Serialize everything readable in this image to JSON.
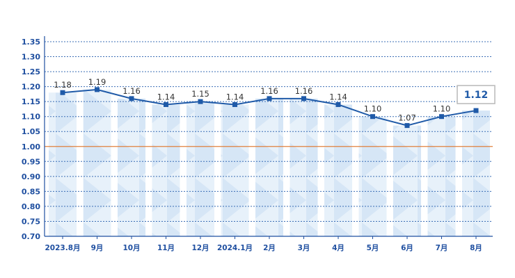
{
  "chart_data": {
    "type": "line",
    "categories": [
      "2023.8月",
      "9月",
      "10月",
      "11月",
      "12月",
      "2024.1月",
      "2月",
      "3月",
      "4月",
      "5月",
      "6月",
      "7月",
      "8月"
    ],
    "values": [
      1.18,
      1.19,
      1.16,
      1.14,
      1.15,
      1.14,
      1.16,
      1.16,
      1.14,
      1.1,
      1.07,
      1.1,
      1.12
    ],
    "data_labels": [
      "1.18",
      "1.19",
      "1.16",
      "1.14",
      "1.15",
      "1.14",
      "1.16",
      "1.16",
      "1.14",
      "1.10",
      "1.07",
      "1.10",
      "1.12"
    ],
    "y_ticks": [
      "1.35",
      "1.30",
      "1.25",
      "1.20",
      "1.15",
      "1.10",
      "1.05",
      "1.00",
      "0.95",
      "0.90",
      "0.85",
      "0.80",
      "0.75",
      "0.70"
    ],
    "ylim": [
      0.7,
      1.35
    ],
    "reference_line": 1.0,
    "highlight_index": 12,
    "title": "",
    "xlabel": "",
    "ylabel": "",
    "grid": true,
    "legend": "none",
    "colors": {
      "line": "#1f5aa8",
      "reference": "#e0803c",
      "grid": "#3a6db5",
      "axis": "#1f4fa0",
      "column": "#d6e8f7"
    }
  }
}
